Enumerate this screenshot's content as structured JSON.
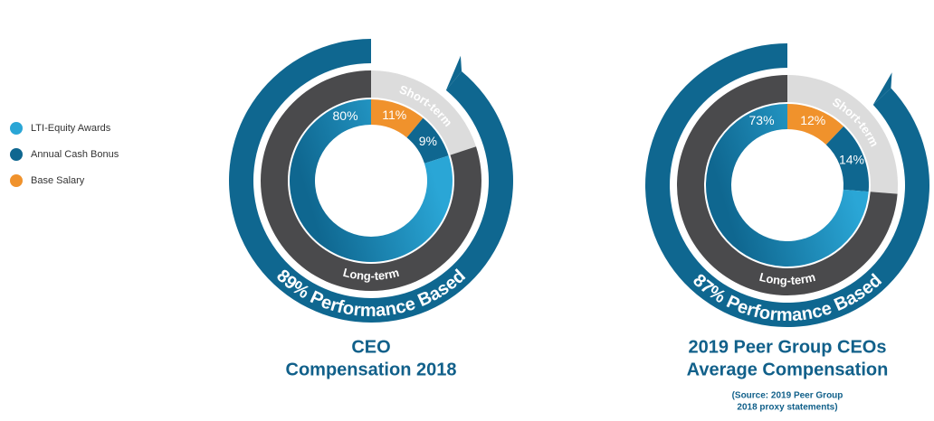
{
  "legend": {
    "labels": [
      "LTI-Equity Awards",
      "Annual Cash Bonus",
      "Base Salary"
    ],
    "colors": [
      "#2aa6d6",
      "#0f6790",
      "#f0922c"
    ]
  },
  "chart_data": [
    {
      "type": "donut",
      "title": [
        "CEO",
        "Compensation 2018"
      ],
      "values": [
        80,
        9,
        11
      ],
      "value_labels": [
        "80%",
        "9%",
        "11%"
      ],
      "ring_labels": [
        "Short-term",
        "Long-term"
      ],
      "performance": {
        "value": 89,
        "label": "89% Performance Based"
      }
    },
    {
      "type": "donut",
      "title": [
        "2019 Peer Group CEOs",
        "Average Compensation"
      ],
      "note": [
        "(Source: 2019 Peer Group",
        "2018 proxy statements)"
      ],
      "values": [
        73,
        14,
        12
      ],
      "value_labels": [
        "73%",
        "14%",
        "12%"
      ],
      "ring_labels": [
        "Short-term",
        "Long-term"
      ],
      "performance": {
        "value": 87,
        "label": "87% Performance Based"
      }
    }
  ]
}
